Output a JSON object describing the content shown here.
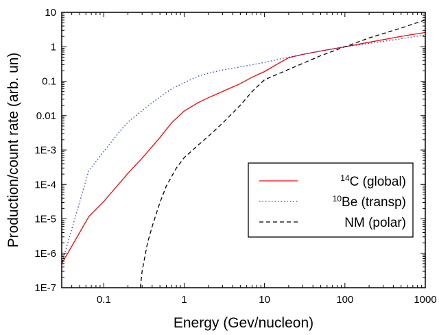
{
  "chart_data": {
    "type": "line",
    "xlabel": "Energy (Gev/nucleon)",
    "ylabel": "Production/count rate (arb. un)",
    "xscale": "log",
    "yscale": "log",
    "xlim": [
      0.03,
      1000
    ],
    "ylim": [
      1e-07,
      10
    ],
    "grid": false,
    "legend_position": "center-right",
    "x_ticks": [
      {
        "value": 0.1,
        "label": "0.1"
      },
      {
        "value": 1,
        "label": "1"
      },
      {
        "value": 10,
        "label": "10"
      },
      {
        "value": 100,
        "label": "100"
      },
      {
        "value": 1000,
        "label": "1000"
      }
    ],
    "y_ticks": [
      {
        "value": 1e-07,
        "label": "1E-7"
      },
      {
        "value": 1e-06,
        "label": "1E-6"
      },
      {
        "value": 1e-05,
        "label": "1E-5"
      },
      {
        "value": 0.0001,
        "label": "1E-4"
      },
      {
        "value": 0.001,
        "label": "1E-3"
      },
      {
        "value": 0.01,
        "label": "0.01"
      },
      {
        "value": 0.1,
        "label": "0.1"
      },
      {
        "value": 1,
        "label": "1"
      },
      {
        "value": 10,
        "label": "10"
      }
    ],
    "series": [
      {
        "name": "(global)",
        "legend_sup": "14",
        "legend_main": "C (global)",
        "color": "#ff0000",
        "dash": "solid",
        "x": [
          0.03,
          0.04,
          0.065,
          0.1,
          0.2,
          0.3,
          0.5,
          0.7,
          1,
          1.5,
          2,
          3,
          5,
          7,
          10,
          15,
          20,
          30,
          50,
          100,
          200,
          500,
          1000
        ],
        "y": [
          5e-07,
          1.6e-06,
          1.15e-05,
          3.2e-05,
          0.00021,
          0.00058,
          0.0023,
          0.0062,
          0.0135,
          0.024,
          0.033,
          0.05,
          0.085,
          0.13,
          0.19,
          0.33,
          0.48,
          0.6,
          0.75,
          1.0,
          1.35,
          2.0,
          2.6
        ]
      },
      {
        "name": "(transp)",
        "legend_sup": "10",
        "legend_main": "Be (transp)",
        "color": "#1f3fd0",
        "dash": "dotted",
        "x": [
          0.03,
          0.04,
          0.065,
          0.1,
          0.15,
          0.2,
          0.3,
          0.5,
          0.7,
          1,
          1.5,
          2,
          3,
          5,
          10,
          20,
          30,
          50,
          100,
          200,
          500,
          1000
        ],
        "y": [
          5e-07,
          5e-06,
          0.00025,
          0.0009,
          0.003,
          0.0065,
          0.014,
          0.035,
          0.06,
          0.09,
          0.14,
          0.17,
          0.21,
          0.26,
          0.35,
          0.5,
          0.6,
          0.75,
          1.0,
          1.25,
          1.7,
          2.2
        ]
      },
      {
        "name": "NM (polar)",
        "legend_sup": "",
        "legend_main": "NM (polar)",
        "color": "#000000",
        "dash": "dashed",
        "x": [
          0.285,
          0.3,
          0.35,
          0.4,
          0.5,
          0.6,
          0.8,
          1,
          1.5,
          2,
          3,
          5,
          7,
          10,
          20,
          30,
          50,
          100,
          200,
          500,
          1000
        ],
        "y": [
          1e-07,
          3e-07,
          2e-06,
          6e-06,
          3e-05,
          9e-05,
          0.0003,
          0.0006,
          0.0014,
          0.0025,
          0.006,
          0.02,
          0.05,
          0.11,
          0.22,
          0.33,
          0.55,
          1.0,
          1.8,
          3.5,
          6.0
        ]
      }
    ]
  }
}
